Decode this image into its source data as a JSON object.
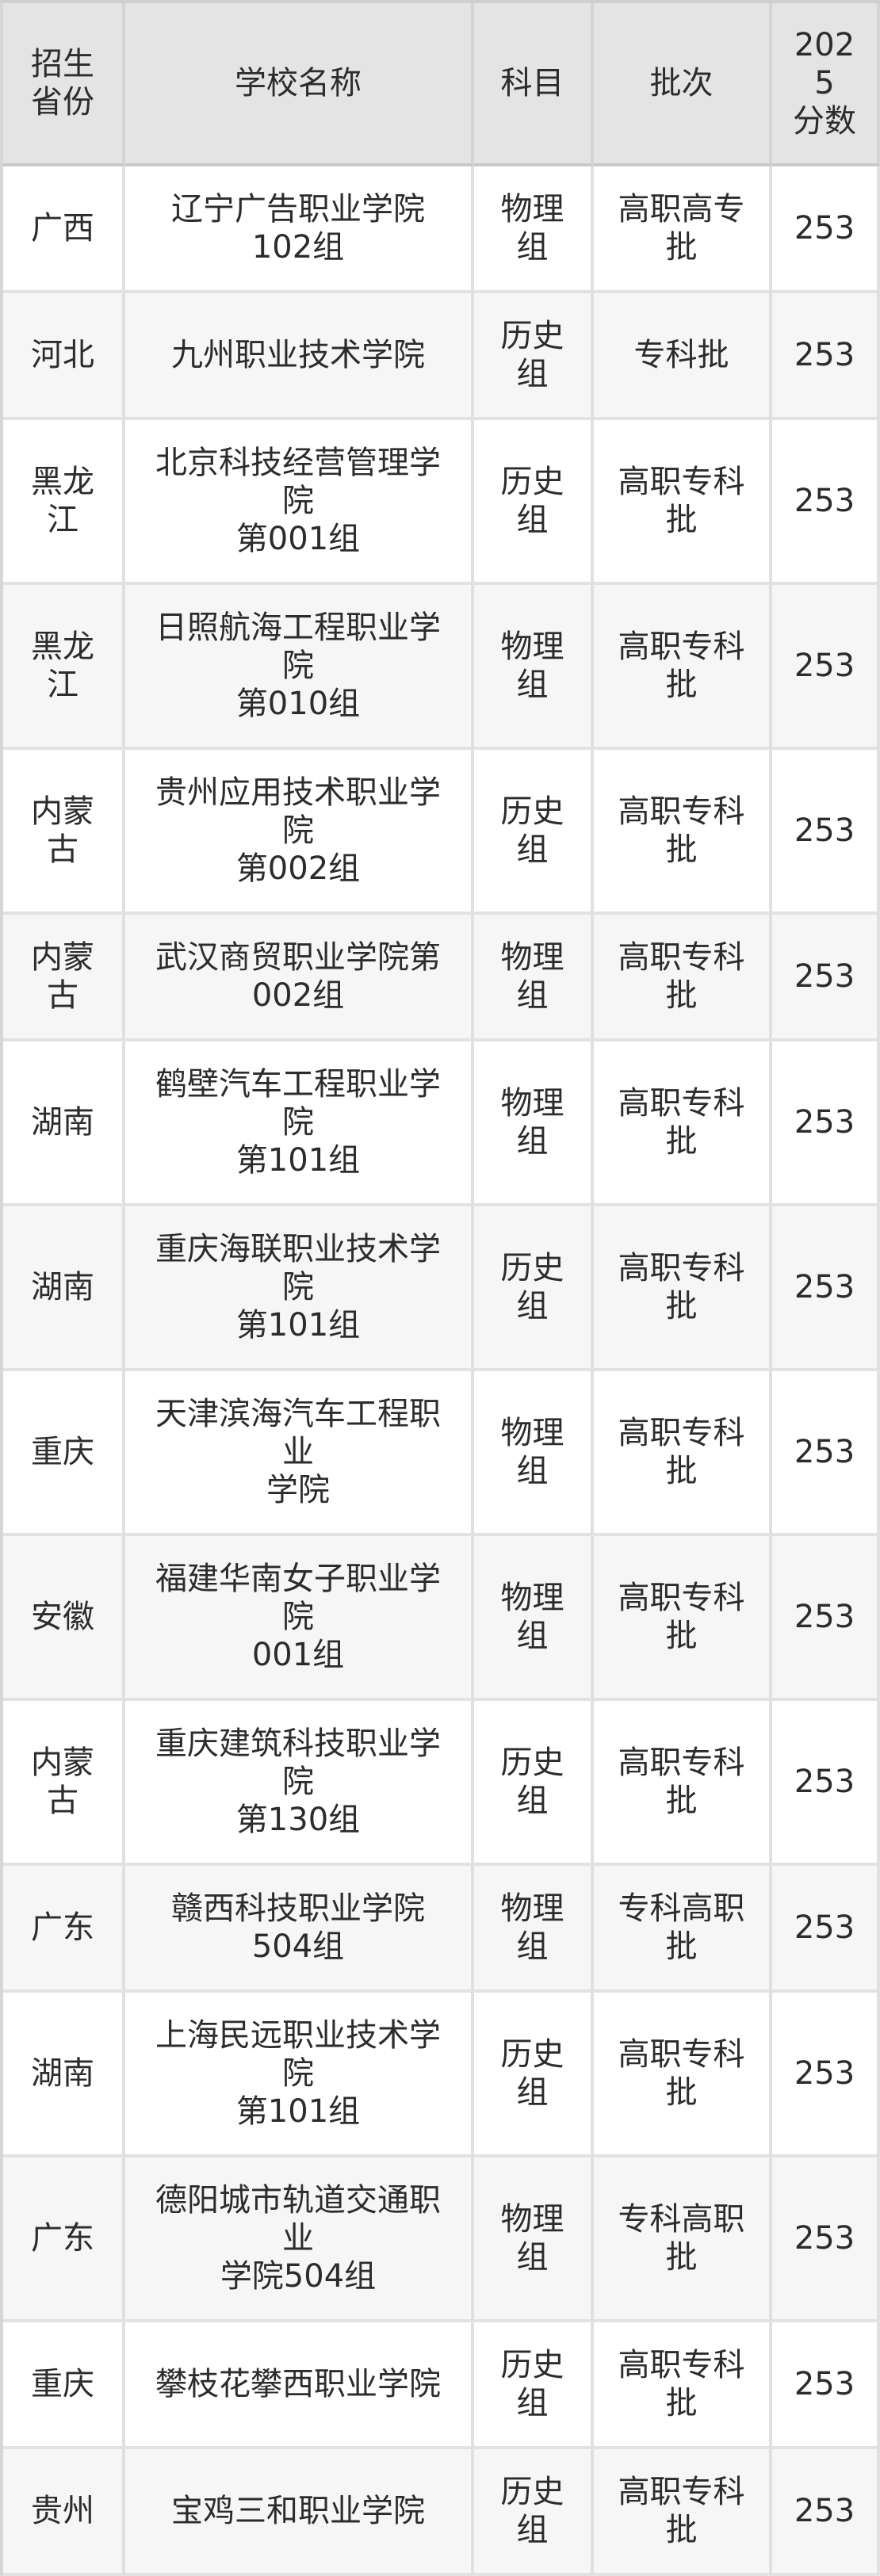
{
  "table": {
    "columns": [
      {
        "key": "province",
        "label": "招生省份"
      },
      {
        "key": "school",
        "label": "学校名称"
      },
      {
        "key": "subject",
        "label": "科目"
      },
      {
        "key": "batch",
        "label": "批次"
      },
      {
        "key": "score",
        "label": "2025\n分数"
      }
    ],
    "rows": [
      {
        "province": "广西",
        "school": "辽宁广告职业学院102组",
        "subject": "物理组",
        "batch": "高职高专批",
        "score": "253"
      },
      {
        "province": "河北",
        "school": "九州职业技术学院",
        "subject": "历史组",
        "batch": "专科批",
        "score": "253"
      },
      {
        "province": "黑龙江",
        "school": "北京科技经营管理学院\n第001组",
        "subject": "历史组",
        "batch": "高职专科批",
        "score": "253"
      },
      {
        "province": "黑龙江",
        "school": "日照航海工程职业学院\n第010组",
        "subject": "物理组",
        "batch": "高职专科批",
        "score": "253"
      },
      {
        "province": "内蒙古",
        "school": "贵州应用技术职业学院\n第002组",
        "subject": "历史组",
        "batch": "高职专科批",
        "score": "253"
      },
      {
        "province": "内蒙古",
        "school": "武汉商贸职业学院第002组",
        "subject": "物理组",
        "batch": "高职专科批",
        "score": "253"
      },
      {
        "province": "湖南",
        "school": "鹤壁汽车工程职业学院\n第101组",
        "subject": "物理组",
        "batch": "高职专科批",
        "score": "253"
      },
      {
        "province": "湖南",
        "school": "重庆海联职业技术学院\n第101组",
        "subject": "历史组",
        "batch": "高职专科批",
        "score": "253"
      },
      {
        "province": "重庆",
        "school": "天津滨海汽车工程职业\n学院",
        "subject": "物理组",
        "batch": "高职专科批",
        "score": "253"
      },
      {
        "province": "安徽",
        "school": "福建华南女子职业学院\n001组",
        "subject": "物理组",
        "batch": "高职专科批",
        "score": "253"
      },
      {
        "province": "内蒙古",
        "school": "重庆建筑科技职业学院\n第130组",
        "subject": "历史组",
        "batch": "高职专科批",
        "score": "253"
      },
      {
        "province": "广东",
        "school": "赣西科技职业学院504组",
        "subject": "物理组",
        "batch": "专科高职批",
        "score": "253"
      },
      {
        "province": "湖南",
        "school": "上海民远职业技术学院\n第101组",
        "subject": "历史组",
        "batch": "高职专科批",
        "score": "253"
      },
      {
        "province": "广东",
        "school": "德阳城市轨道交通职业\n学院504组",
        "subject": "物理组",
        "batch": "专科高职批",
        "score": "253"
      },
      {
        "province": "重庆",
        "school": "攀枝花攀西职业学院",
        "subject": "历史组",
        "batch": "高职专科批",
        "score": "253"
      },
      {
        "province": "贵州",
        "school": "宝鸡三和职业学院",
        "subject": "历史组",
        "batch": "高职专科批",
        "score": "253"
      }
    ]
  },
  "colors": {
    "header_bg": "#e4e4e4",
    "row_bg": "#ffffff",
    "row_alt_bg": "#f6f6f6",
    "header_border": "#c9c9c9",
    "cell_border": "#e0e0e0",
    "text": "#2c2c2c"
  }
}
